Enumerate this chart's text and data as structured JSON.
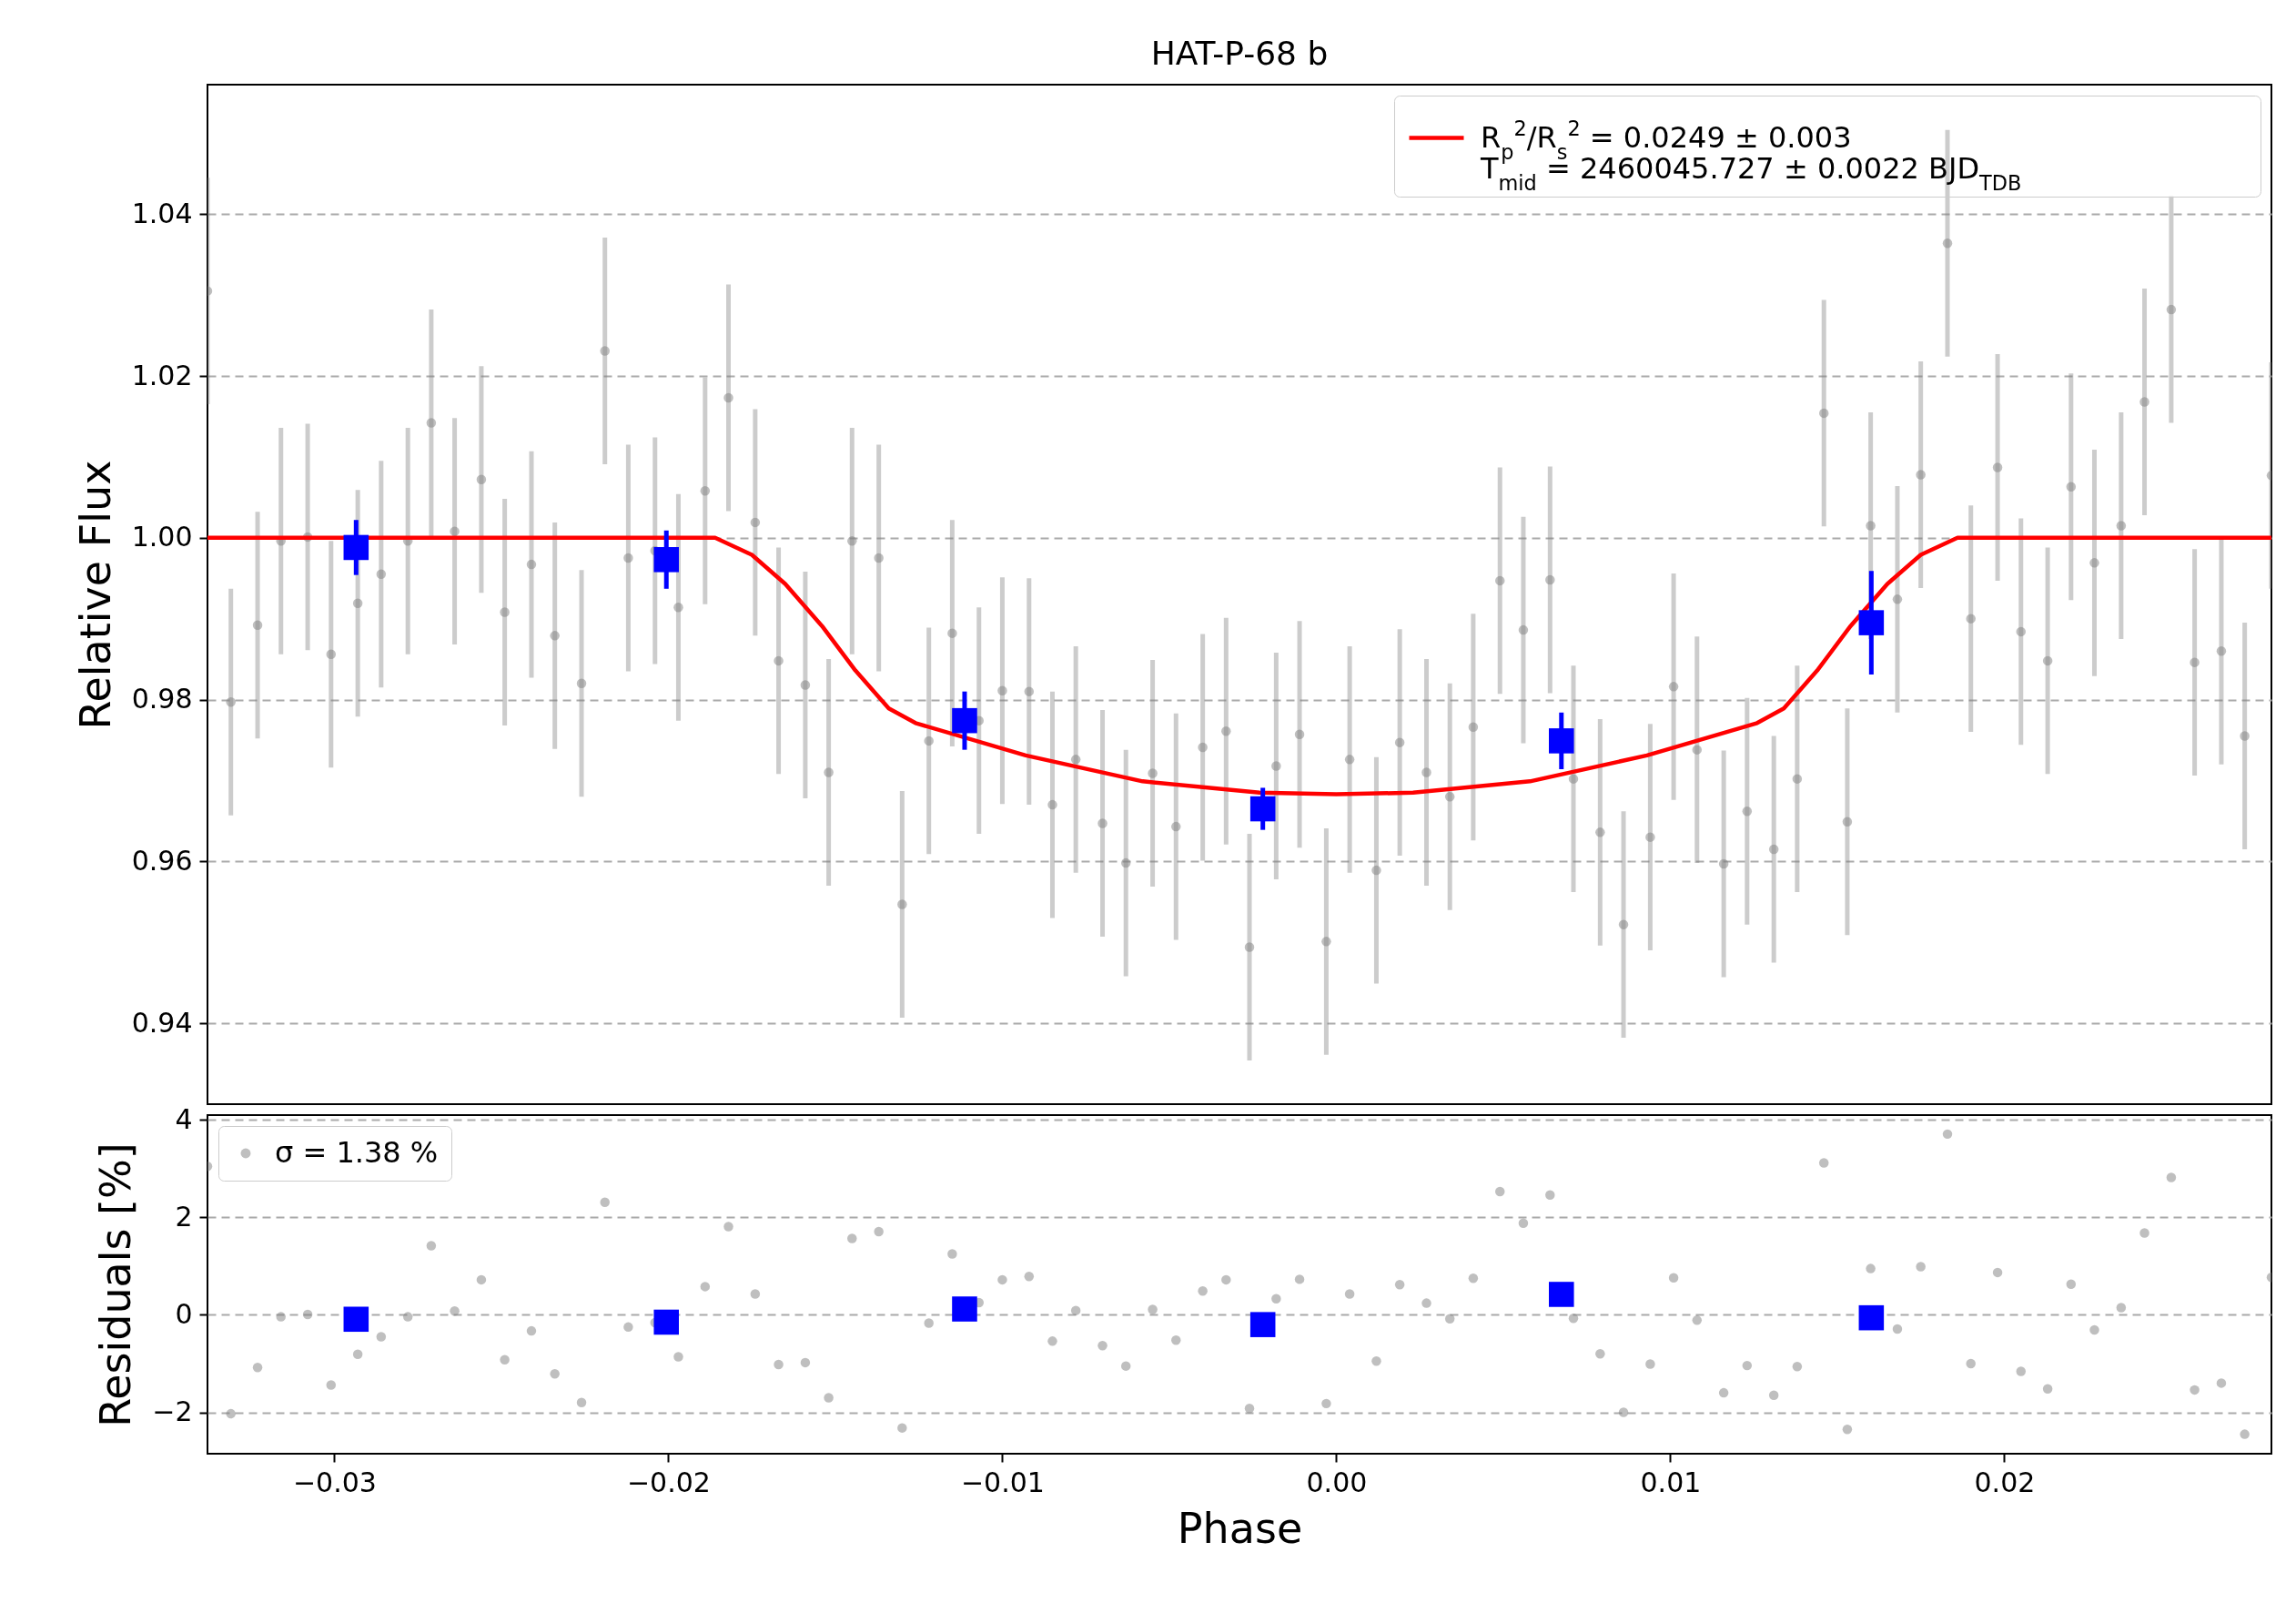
{
  "chart_data": [
    {
      "type": "scatter",
      "title": "HAT-P-68 b",
      "ylabel": "Relative Flux",
      "xlim": [
        -0.0338,
        0.028
      ],
      "ylim": [
        0.93,
        1.056
      ],
      "yticks": [
        0.94,
        0.96,
        0.98,
        {
          "value": 1,
          "label": "1.00"
        },
        1.02,
        1.04
      ],
      "tick_labels": "y",
      "grid": "y",
      "legend": "top right",
      "series": [
        {
          "marker": "circle",
          "color": "#808080",
          "x": [
            -0.0338,
            -0.0331,
            -0.0323,
            -0.0316,
            -0.0308,
            -0.0301,
            -0.0293,
            -0.0286,
            -0.0278,
            -0.0271,
            -0.0264,
            -0.0256,
            -0.0249,
            -0.0241,
            -0.0234,
            -0.0226,
            -0.0219,
            -0.0212,
            -0.0204,
            -0.0197,
            -0.0189,
            -0.0182,
            -0.0174,
            -0.0167,
            -0.0159,
            -0.0152,
            -0.0145,
            -0.0137,
            -0.013,
            -0.0122,
            -0.0115,
            -0.0107,
            -0.01,
            -0.0092,
            -0.0085,
            -0.0078,
            -0.007,
            -0.0063,
            -0.0055,
            -0.0048,
            -0.004,
            -0.0033,
            -0.0026,
            -0.0018,
            -0.0011,
            -0.0003,
            0.0004,
            0.0012,
            0.0019,
            0.0027,
            0.0034,
            0.0041,
            0.0049,
            0.0056,
            0.0064,
            0.0071,
            0.0079,
            0.0086,
            0.0094,
            0.0101,
            0.0108,
            0.0116,
            0.0123,
            0.0131,
            0.0138,
            0.0146,
            0.0153,
            0.016,
            0.0168,
            0.0175,
            0.0183,
            0.019,
            0.0198,
            0.0205,
            0.0213,
            0.022,
            0.0227,
            0.0235,
            0.0242,
            0.025,
            0.0257,
            0.0265,
            0.0272,
            0.028
          ],
          "values": [
            1.0305,
            0.9797,
            0.9892,
            0.9996,
            1.0001,
            0.9856,
            0.9919,
            0.9955,
            0.9996,
            1.0142,
            1.0008,
            1.0072,
            0.9908,
            0.9967,
            0.9879,
            0.982,
            1.0231,
            0.9975,
            0.9984,
            0.9914,
            1.0058,
            1.0173,
            1.0019,
            0.9848,
            0.9818,
            0.971,
            0.9996,
            0.9975,
            0.9547,
            0.9749,
            0.9882,
            0.9774,
            0.9811,
            0.981,
            0.967,
            0.9726,
            0.9647,
            0.9598,
            0.9709,
            0.9643,
            0.9741,
            0.9761,
            0.9494,
            0.9718,
            0.9757,
            0.9501,
            0.9726,
            0.9589,
            0.9747,
            0.971,
            0.968,
            0.9766,
            0.9947,
            0.9886,
            0.9948,
            0.9702,
            0.9636,
            0.9522,
            0.963,
            0.9816,
            0.9738,
            0.9597,
            0.9662,
            0.9615,
            0.9702,
            1.0154,
            0.9649,
            1.0015,
            0.9924,
            1.0078,
            1.0364,
            0.99,
            1.0087,
            0.9884,
            0.9848,
            1.0063,
            0.9969,
            1.0015,
            1.0168,
            1.0282,
            0.9846,
            0.986,
            0.9755,
            1.0077
          ],
          "errors": [
            0.014,
            0.014,
            0.014,
            0.014,
            0.014,
            0.014,
            0.014,
            0.014,
            0.014,
            0.014,
            0.014,
            0.014,
            0.014,
            0.014,
            0.014,
            0.014,
            0.014,
            0.014,
            0.014,
            0.014,
            0.014,
            0.014,
            0.014,
            0.014,
            0.014,
            0.014,
            0.014,
            0.014,
            0.014,
            0.014,
            0.014,
            0.014,
            0.014,
            0.014,
            0.014,
            0.014,
            0.014,
            0.014,
            0.014,
            0.014,
            0.014,
            0.014,
            0.014,
            0.014,
            0.014,
            0.014,
            0.014,
            0.014,
            0.014,
            0.014,
            0.014,
            0.014,
            0.014,
            0.014,
            0.014,
            0.014,
            0.014,
            0.014,
            0.014,
            0.014,
            0.014,
            0.014,
            0.014,
            0.014,
            0.014,
            0.014,
            0.014,
            0.014,
            0.014,
            0.014,
            0.014,
            0.014,
            0.014,
            0.014,
            0.014,
            0.014,
            0.014,
            0.014,
            0.014,
            0.014,
            0.014,
            0.014,
            0.014,
            0.014
          ]
        },
        {
          "type": "line",
          "name": "R$_{p}$$^{2}$/R$_{s}$$^{2}$ = 0.0249 ± 0.003\nT$_{mid}$ = 2460045.727 ± 0.0022 BJD$_{TDB}$",
          "color": "#ff0000",
          "line_style": "solid",
          "x": [
            -0.0338,
            -0.0186,
            -0.0175,
            -0.0165,
            -0.0154,
            -0.0144,
            -0.0134,
            -0.0126,
            -0.0093,
            -0.0058,
            -0.0023,
            0,
            0.0023,
            0.0058,
            0.0093,
            0.0126,
            0.0134,
            0.0144,
            0.0154,
            0.0165,
            0.0175,
            0.0186,
            0.028
          ],
          "values": [
            1,
            1,
            0.9979,
            0.9943,
            0.9891,
            0.9836,
            0.9789,
            0.9771,
            0.9731,
            0.9699,
            0.9685,
            0.9683,
            0.9685,
            0.9699,
            0.9731,
            0.9771,
            0.9789,
            0.9836,
            0.9891,
            0.9943,
            0.9979,
            1,
            1
          ]
        },
        {
          "marker": "square",
          "color": "#0000ff",
          "x": [
            -0.02935,
            -0.02006,
            -0.01113,
            -0.0022,
            0.00674,
            0.01602
          ],
          "values": [
            0.9988,
            0.9973,
            0.9774,
            0.9665,
            0.9749,
            0.9895
          ],
          "errors": [
            0.0034,
            0.0036,
            0.0036,
            0.0026,
            0.0035,
            0.0064
          ]
        }
      ]
    },
    {
      "type": "scatter",
      "xlabel": "Phase",
      "ylabel": "Residuals [%]",
      "xlim": [
        -0.0338,
        0.028
      ],
      "xticks": [
        {
          "value": -0.03,
          "label": "−0.03"
        },
        {
          "value": -0.02,
          "label": "−0.02"
        },
        {
          "value": -0.01,
          "label": "−0.01"
        },
        {
          "value": 0,
          "label": "0.00"
        },
        0.01,
        0.02
      ],
      "ylim": [
        -2.85,
        4.1
      ],
      "yticks": [
        {
          "value": -2,
          "label": "−2"
        },
        0,
        2,
        4
      ],
      "grid": "y",
      "legend": "top left",
      "series": [
        {
          "name": "σ = 1.38 %",
          "marker": "circle",
          "color": "#808080",
          "x": [
            -0.0338,
            -0.0331,
            -0.0323,
            -0.0316,
            -0.0308,
            -0.0301,
            -0.0293,
            -0.0286,
            -0.0278,
            -0.0271,
            -0.0264,
            -0.0256,
            -0.0249,
            -0.0241,
            -0.0234,
            -0.0226,
            -0.0219,
            -0.0212,
            -0.0204,
            -0.0197,
            -0.0189,
            -0.0182,
            -0.0174,
            -0.0167,
            -0.0159,
            -0.0152,
            -0.0145,
            -0.0137,
            -0.013,
            -0.0122,
            -0.0115,
            -0.0107,
            -0.01,
            -0.0092,
            -0.0085,
            -0.0078,
            -0.007,
            -0.0063,
            -0.0055,
            -0.0048,
            -0.004,
            -0.0033,
            -0.0026,
            -0.0018,
            -0.0011,
            -0.0003,
            0.0004,
            0.0012,
            0.0019,
            0.0027,
            0.0034,
            0.0041,
            0.0049,
            0.0056,
            0.0064,
            0.0071,
            0.0079,
            0.0086,
            0.0094,
            0.0101,
            0.0108,
            0.0116,
            0.0123,
            0.0131,
            0.0138,
            0.0146,
            0.0153,
            0.016,
            0.0168,
            0.0175,
            0.0183,
            0.019,
            0.0198,
            0.0205,
            0.0213,
            0.022,
            0.0227,
            0.0235,
            0.0242,
            0.025,
            0.0257,
            0.0265,
            0.0272,
            0.028
          ],
          "values": [
            3.05,
            -2.03,
            -1.08,
            -0.04,
            0.01,
            -1.44,
            -0.81,
            -0.45,
            -0.04,
            1.42,
            0.08,
            0.72,
            -0.92,
            -0.33,
            -1.21,
            -1.8,
            2.31,
            -0.25,
            -0.16,
            -0.86,
            0.58,
            1.81,
            0.43,
            -1.02,
            -0.98,
            -1.7,
            1.57,
            1.71,
            -2.32,
            -0.17,
            1.25,
            0.25,
            0.72,
            0.79,
            -0.54,
            0.09,
            -0.63,
            -1.05,
            0.11,
            -0.52,
            0.49,
            0.72,
            -1.92,
            0.33,
            0.73,
            -1.82,
            0.43,
            -0.95,
            0.62,
            0.24,
            -0.08,
            0.75,
            2.53,
            1.88,
            2.46,
            -0.07,
            -0.8,
            -2.0,
            -1.01,
            0.76,
            -0.11,
            -1.6,
            -1.04,
            -1.65,
            -1.06,
            3.12,
            -2.35,
            0.95,
            -0.29,
            0.99,
            3.71,
            -1.0,
            0.87,
            -1.16,
            -1.52,
            0.63,
            -0.31,
            0.15,
            1.68,
            2.82,
            -1.54,
            -1.4,
            -2.45,
            0.77
          ]
        },
        {
          "marker": "square",
          "color": "#0000ff",
          "x": [
            -0.02935,
            -0.02006,
            -0.01113,
            -0.0022,
            0.00674,
            0.01602
          ],
          "values": [
            -0.09,
            -0.15,
            0.12,
            -0.2,
            0.42,
            -0.06
          ]
        }
      ]
    }
  ]
}
